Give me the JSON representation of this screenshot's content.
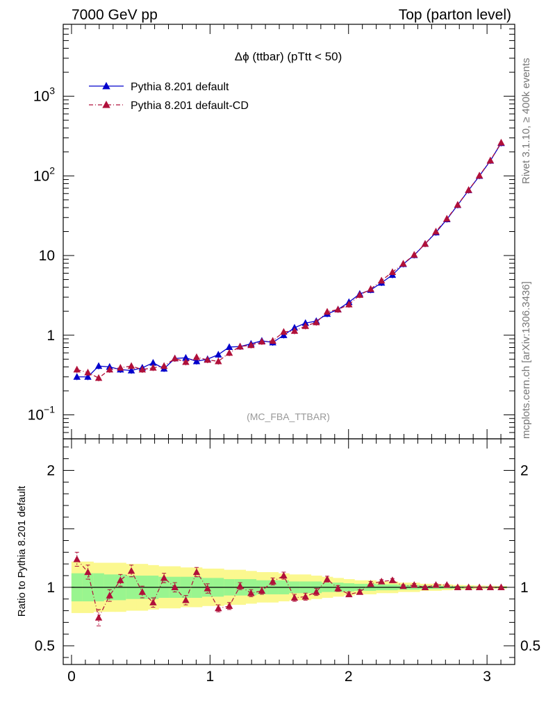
{
  "header": {
    "left": "7000 GeV pp",
    "right": "Top (parton level)"
  },
  "side_labels": {
    "rivet": "Rivet 3.1.10, ≥ 400k events",
    "mcplots": "mcplots.cern.ch [arXiv:1306.3436]"
  },
  "colors": {
    "default": "#0000cc",
    "cd": "#b0103a",
    "band_inner": "#99f58f",
    "band_outer": "#fbf88f"
  },
  "chart_data": [
    {
      "type": "line",
      "panel": "main",
      "title": "Δϕ (ttbar) (pTtt < 50)",
      "watermark": "(MC_FBA_TTBAR)",
      "xlabel": "",
      "ylabel": "",
      "yscale": "log",
      "xlim": [
        -0.06,
        3.2
      ],
      "ylim": [
        0.05,
        8000
      ],
      "yticks": [
        {
          "v": 0.1,
          "base": "10",
          "exp": "−1"
        },
        {
          "v": 1,
          "base": "1",
          "exp": ""
        },
        {
          "v": 10,
          "base": "10",
          "exp": ""
        },
        {
          "v": 100,
          "base": "10",
          "exp": "2"
        },
        {
          "v": 1000,
          "base": "10",
          "exp": "3"
        }
      ],
      "legend_position": "top-left",
      "x": [
        0.039,
        0.118,
        0.196,
        0.275,
        0.353,
        0.432,
        0.511,
        0.589,
        0.668,
        0.746,
        0.825,
        0.903,
        0.982,
        1.06,
        1.139,
        1.217,
        1.296,
        1.374,
        1.453,
        1.532,
        1.61,
        1.689,
        1.767,
        1.846,
        1.924,
        2.003,
        2.081,
        2.16,
        2.238,
        2.317,
        2.395,
        2.474,
        2.553,
        2.631,
        2.71,
        2.788,
        2.867,
        2.945,
        3.024,
        3.102
      ],
      "series": [
        {
          "name": "Pythia 8.201 default",
          "key": "default",
          "marker": "triangle",
          "line": "solid",
          "values": [
            0.3,
            0.3,
            0.41,
            0.4,
            0.37,
            0.36,
            0.39,
            0.45,
            0.38,
            0.51,
            0.52,
            0.47,
            0.5,
            0.57,
            0.71,
            0.72,
            0.78,
            0.85,
            0.81,
            1.0,
            1.24,
            1.42,
            1.5,
            1.85,
            2.1,
            2.6,
            3.3,
            3.7,
            4.55,
            5.7,
            7.8,
            10.1,
            14.0,
            19.5,
            28.5,
            43.0,
            66.0,
            100,
            155,
            258
          ]
        },
        {
          "name": "Pythia 8.201 default-CD",
          "key": "cd",
          "marker": "triangle",
          "line": "dashdot",
          "values": [
            0.37,
            0.34,
            0.29,
            0.37,
            0.39,
            0.41,
            0.37,
            0.39,
            0.41,
            0.51,
            0.46,
            0.53,
            0.49,
            0.47,
            0.6,
            0.72,
            0.75,
            0.83,
            0.85,
            1.1,
            1.13,
            1.3,
            1.45,
            1.97,
            2.1,
            2.43,
            3.2,
            3.8,
            4.85,
            6.2,
            7.9,
            10.2,
            14.0,
            20.0,
            29.0,
            43.3,
            66.5,
            101,
            156,
            262
          ]
        }
      ]
    },
    {
      "type": "line",
      "panel": "ratio",
      "title": "",
      "xlabel": "",
      "ylabel": "Ratio to Pythia 8.201 default",
      "xlim": [
        -0.06,
        3.2
      ],
      "ylim": [
        0.34,
        2.27
      ],
      "xticks": [
        "0",
        "1",
        "2",
        "3"
      ],
      "yticks": [
        "0.5",
        "1",
        "2"
      ],
      "x": [
        0.039,
        0.118,
        0.196,
        0.275,
        0.353,
        0.432,
        0.511,
        0.589,
        0.668,
        0.746,
        0.825,
        0.903,
        0.982,
        1.06,
        1.139,
        1.217,
        1.296,
        1.374,
        1.453,
        1.532,
        1.61,
        1.689,
        1.767,
        1.846,
        1.924,
        2.003,
        2.081,
        2.16,
        2.238,
        2.317,
        2.395,
        2.474,
        2.553,
        2.631,
        2.71,
        2.788,
        2.867,
        2.945,
        3.024,
        3.102
      ],
      "band_inner_halfwidth": [
        0.12,
        0.12,
        0.12,
        0.11,
        0.11,
        0.1,
        0.1,
        0.1,
        0.09,
        0.09,
        0.09,
        0.09,
        0.08,
        0.08,
        0.07,
        0.07,
        0.07,
        0.06,
        0.06,
        0.06,
        0.05,
        0.05,
        0.05,
        0.04,
        0.04,
        0.035,
        0.03,
        0.03,
        0.025,
        0.025,
        0.02,
        0.02,
        0.015,
        0.015,
        0.012,
        0.01,
        0.01,
        0.008,
        0.007,
        0.006
      ],
      "band_outer_halfwidth": [
        0.22,
        0.22,
        0.21,
        0.21,
        0.21,
        0.2,
        0.2,
        0.19,
        0.18,
        0.18,
        0.17,
        0.17,
        0.16,
        0.16,
        0.15,
        0.15,
        0.14,
        0.13,
        0.13,
        0.12,
        0.11,
        0.11,
        0.1,
        0.09,
        0.08,
        0.07,
        0.06,
        0.06,
        0.05,
        0.05,
        0.04,
        0.04,
        0.03,
        0.03,
        0.025,
        0.02,
        0.018,
        0.015,
        0.013,
        0.011
      ],
      "series": [
        {
          "name": "Pythia 8.201 default-CD",
          "key": "cd",
          "values": [
            1.24,
            1.13,
            0.74,
            0.93,
            1.06,
            1.14,
            0.96,
            0.87,
            1.08,
            1.0,
            0.89,
            1.13,
            0.99,
            0.82,
            0.84,
            1.01,
            0.95,
            0.97,
            1.05,
            1.1,
            0.91,
            0.92,
            0.96,
            1.07,
            0.99,
            0.94,
            0.96,
            1.03,
            1.05,
            1.06,
            1.01,
            1.02,
            1.0,
            1.02,
            1.02,
            1.0,
            1.0,
            1.0,
            1.0,
            1.0
          ],
          "errors": [
            0.06,
            0.06,
            0.07,
            0.05,
            0.05,
            0.05,
            0.05,
            0.04,
            0.04,
            0.04,
            0.04,
            0.04,
            0.04,
            0.03,
            0.03,
            0.03,
            0.03,
            0.03,
            0.03,
            0.03,
            0.03,
            0.03,
            0.03,
            0.025,
            0.025,
            0.02,
            0.02,
            0.02,
            0.015,
            0.015,
            0.012,
            0.012,
            0.01,
            0.01,
            0.008,
            0.007,
            0.006,
            0.005,
            0.005,
            0.005
          ]
        }
      ]
    }
  ]
}
